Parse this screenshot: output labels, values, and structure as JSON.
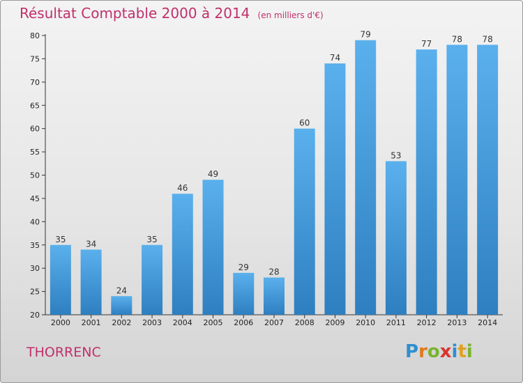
{
  "header": {
    "title": "Résultat Comptable 2000 à 2014",
    "subtitle": "(en milliers d'€)"
  },
  "footer": {
    "town": "THORRENC",
    "logo_text": "Proxiti",
    "logo_letters": [
      {
        "ch": "P",
        "color": "#2f8fd0"
      },
      {
        "ch": "r",
        "color": "#e07a1e"
      },
      {
        "ch": "o",
        "color": "#7ab32e"
      },
      {
        "ch": "x",
        "color": "#d8342c"
      },
      {
        "ch": "i",
        "color": "#2f8fd0"
      },
      {
        "ch": "t",
        "color": "#e0a21e"
      },
      {
        "ch": "i",
        "color": "#7ab32e"
      }
    ]
  },
  "colors": {
    "title": "#c0306a",
    "bar_top": "#5ab0ec",
    "bar_bottom": "#2e7fc0"
  },
  "chart_data": {
    "type": "bar",
    "title": "Résultat Comptable 2000 à 2014",
    "subtitle": "(en milliers d'€)",
    "categories": [
      "2000",
      "2001",
      "2002",
      "2003",
      "2004",
      "2005",
      "2006",
      "2007",
      "2008",
      "2009",
      "2010",
      "2011",
      "2012",
      "2013",
      "2014"
    ],
    "values": [
      35,
      34,
      24,
      35,
      46,
      49,
      29,
      28,
      60,
      74,
      79,
      53,
      77,
      78,
      78
    ],
    "ylim": [
      20,
      80
    ],
    "yticks": [
      20,
      25,
      30,
      35,
      40,
      45,
      50,
      55,
      60,
      65,
      70,
      75,
      80
    ],
    "grid": false,
    "data_labels": true
  }
}
